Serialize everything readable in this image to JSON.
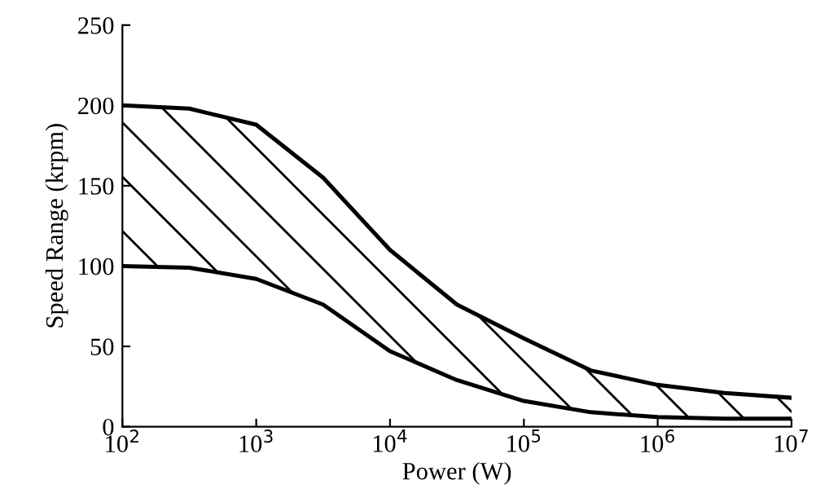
{
  "chart_data": {
    "type": "line",
    "xlabel": "Power (W)",
    "ylabel": "Speed Range (krpm)",
    "log": "x",
    "x": [
      100,
      316,
      1000,
      3162,
      10000,
      31623,
      100000,
      316228,
      1000000,
      3162278,
      10000000
    ],
    "series": [
      {
        "color": "#000000",
        "values": [
          200,
          198,
          188,
          155,
          110,
          76,
          55,
          35,
          26,
          21,
          18
        ],
        "lower": [
          100,
          99,
          92,
          76,
          47,
          29,
          16,
          9,
          6,
          5,
          5
        ],
        "upper": [
          200,
          198,
          188,
          155,
          110,
          76,
          55,
          35,
          26,
          21,
          18
        ]
      },
      {
        "color": "#000000",
        "values": [
          100,
          99,
          92,
          76,
          47,
          29,
          16,
          9,
          6,
          5,
          5
        ]
      }
    ],
    "xlim": [
      100,
      10000000
    ],
    "xticks": [
      {
        "value": 100,
        "label": "10$^{2}$"
      },
      {
        "value": 1000,
        "label": "10$^{3}$"
      },
      {
        "value": 10000,
        "label": "10$^{4}$"
      },
      {
        "value": 100000,
        "label": "10$^{5}$"
      },
      {
        "value": 1000000,
        "label": "10$^{6}$"
      },
      {
        "value": 10000000,
        "label": "10$^{7}$"
      }
    ],
    "ylim": [
      0,
      250
    ],
    "yticks": [
      0,
      50,
      100,
      150,
      200,
      250
    ],
    "grid": false,
    "legend": false,
    "marker": "none",
    "line_style": "solid"
  }
}
